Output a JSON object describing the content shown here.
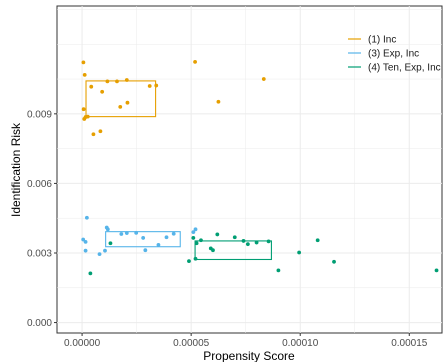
{
  "chart_data": {
    "type": "scatter",
    "xlabel": "Propensity Score",
    "ylabel": "Identification Risk",
    "xlim": [
      -1.15e-05,
      0.000165
    ],
    "ylim": [
      -0.00045,
      0.01365
    ],
    "x_ticks": [
      0,
      5e-05,
      0.0001,
      0.00015
    ],
    "x_tick_labels": [
      "0.00000",
      "0.00005",
      "0.00010",
      "0.00015"
    ],
    "y_ticks": [
      0,
      0.003,
      0.006,
      0.009
    ],
    "y_tick_labels": [
      "0.000",
      "0.003",
      "0.006",
      "0.009"
    ],
    "grid": true,
    "legend_position": "top-right",
    "series": [
      {
        "name": "(1) Inc",
        "color": "#E69F00",
        "box": {
          "x0": 1.8e-06,
          "x1": 3.37e-05,
          "y0": 0.00888,
          "y1": 0.01042
        },
        "points": [
          [
            6e-07,
            0.01122
          ],
          [
            1.2e-06,
            0.01068
          ],
          [
            7e-07,
            0.0092
          ],
          [
            1e-06,
            0.00878
          ],
          [
            1.6e-06,
            0.00886
          ],
          [
            2.6e-06,
            0.00888
          ],
          [
            4.2e-06,
            0.01017
          ],
          [
            5.2e-06,
            0.00812
          ],
          [
            9.2e-06,
            0.00995
          ],
          [
            8.4e-06,
            0.00825
          ],
          [
            1.16e-05,
            0.0104
          ],
          [
            1.6e-05,
            0.0104
          ],
          [
            1.75e-05,
            0.0093
          ],
          [
            2.05e-05,
            0.01046
          ],
          [
            2.08e-05,
            0.00948
          ],
          [
            3.1e-05,
            0.0102
          ],
          [
            3.4e-05,
            0.01022
          ],
          [
            5.18e-05,
            0.01124
          ],
          [
            6.25e-05,
            0.00952
          ],
          [
            8.33e-05,
            0.0105
          ]
        ]
      },
      {
        "name": "(3) Exp, Inc",
        "color": "#56B4E9",
        "box": {
          "x0": 1.08e-05,
          "x1": 4.5e-05,
          "y0": 0.00327,
          "y1": 0.00392
        },
        "points": [
          [
            5e-07,
            0.00358
          ],
          [
            1.6e-06,
            0.00348
          ],
          [
            2.2e-06,
            0.00452
          ],
          [
            1.6e-06,
            0.0031
          ],
          [
            8e-06,
            0.00295
          ],
          [
            1.05e-05,
            0.0031
          ],
          [
            1.13e-05,
            0.0041
          ],
          [
            1.18e-05,
            0.00402
          ],
          [
            1.8e-05,
            0.00382
          ],
          [
            2.05e-05,
            0.00386
          ],
          [
            2.48e-05,
            0.00387
          ],
          [
            2.8e-05,
            0.00365
          ],
          [
            2.9e-05,
            0.00312
          ],
          [
            3.5e-05,
            0.00335
          ],
          [
            3.87e-05,
            0.00368
          ],
          [
            4.2e-05,
            0.00383
          ],
          [
            5.1e-05,
            0.0039
          ],
          [
            5.2e-05,
            0.00402
          ]
        ]
      },
      {
        "name": "(4) Ten, Exp, Inc",
        "color": "#009E73",
        "box": {
          "x0": 5.18e-05,
          "x1": 8.68e-05,
          "y0": 0.00272,
          "y1": 0.00352
        },
        "points": [
          [
            3.8e-06,
            0.00212
          ],
          [
            1.3e-05,
            0.00342
          ],
          [
            4.9e-05,
            0.00265
          ],
          [
            5.1e-05,
            0.00365
          ],
          [
            5.25e-05,
            0.00342
          ],
          [
            5.2e-05,
            0.00275
          ],
          [
            5.45e-05,
            0.00355
          ],
          [
            5.9e-05,
            0.0032
          ],
          [
            6e-05,
            0.00312
          ],
          [
            6.2e-05,
            0.0038
          ],
          [
            7e-05,
            0.00368
          ],
          [
            7.4e-05,
            0.00352
          ],
          [
            7.6e-05,
            0.00338
          ],
          [
            8e-05,
            0.00345
          ],
          [
            8.55e-05,
            0.0035
          ],
          [
            9e-05,
            0.00225
          ],
          [
            9.95e-05,
            0.00302
          ],
          [
            0.000108,
            0.00355
          ],
          [
            0.0001155,
            0.00262
          ],
          [
            0.0001625,
            0.00225
          ]
        ]
      }
    ]
  }
}
